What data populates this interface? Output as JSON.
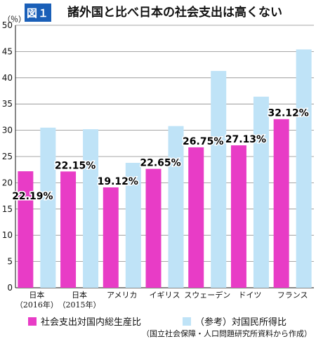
{
  "header": {
    "figure_label": "図１",
    "title": "諸外国と比べ日本の社会支出は高くない"
  },
  "chart_data": {
    "type": "bar",
    "ylabel": "（％）",
    "ylim": [
      0,
      50
    ],
    "yticks": [
      0,
      5,
      10,
      15,
      20,
      25,
      30,
      35,
      40,
      45,
      50
    ],
    "categories": [
      [
        "日本",
        "（2016年）"
      ],
      [
        "日本",
        "（2015年）"
      ],
      [
        "アメリカ"
      ],
      [
        "イギリス"
      ],
      [
        "スウェーデン"
      ],
      [
        "ドイツ"
      ],
      [
        "フランス"
      ]
    ],
    "series": [
      {
        "name": "社会支出対国内総生産比",
        "color": "#e83cc6",
        "values": [
          22.19,
          22.15,
          19.12,
          22.65,
          26.75,
          27.13,
          32.12
        ],
        "labels": [
          "22.19%",
          "22.15%",
          "19.12%",
          "22.65%",
          "26.75%",
          "27.13%",
          "32.12%"
        ]
      },
      {
        "name": "（参考）対国民所得比",
        "color": "#bfe3f7",
        "values": [
          30.5,
          30.2,
          23.8,
          30.8,
          41.3,
          36.4,
          45.4
        ]
      }
    ],
    "grid": "horizontal",
    "legend_position": "bottom"
  },
  "source": "（国立社会保障・人口問題研究所資料から作成）"
}
